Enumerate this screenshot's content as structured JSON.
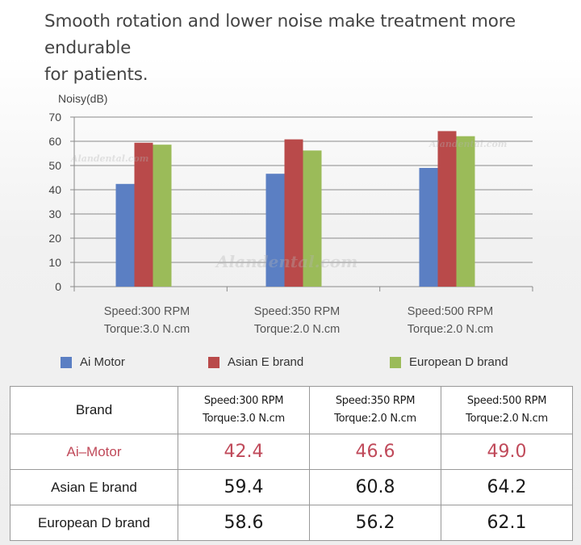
{
  "heading": {
    "line1": "Smooth rotation and lower noise make treatment more endurable",
    "line2": "for patients."
  },
  "watermark": "Alandental.com",
  "chart_data": {
    "type": "bar",
    "ylabel": "Noisy(dB)",
    "ylim": [
      0,
      70
    ],
    "yticks": [
      0,
      10,
      20,
      30,
      40,
      50,
      60,
      70
    ],
    "grid": true,
    "legend_position": "bottom",
    "categories": [
      [
        "Speed:300 RPM",
        "Torque:3.0 N.cm"
      ],
      [
        "Speed:350 RPM",
        "Torque:2.0 N.cm"
      ],
      [
        "Speed:500 RPM",
        "Torque:2.0 N.cm"
      ]
    ],
    "series": [
      {
        "name": "Ai Motor",
        "color": "#5b7fc3",
        "values": [
          42.4,
          46.6,
          49.0
        ]
      },
      {
        "name": "Asian E brand",
        "color": "#b94a4a",
        "values": [
          59.4,
          60.8,
          64.2
        ]
      },
      {
        "name": "European D brand",
        "color": "#9bbb59",
        "values": [
          58.6,
          56.2,
          62.1
        ]
      }
    ]
  },
  "table": {
    "header_label": "Brand",
    "columns": [
      [
        "Speed:300 RPM",
        "Torque:3.0 N.cm"
      ],
      [
        "Speed:350 RPM",
        "Torque:2.0 N.cm"
      ],
      [
        "Speed:500 RPM",
        "Torque:2.0 N.cm"
      ]
    ],
    "rows": [
      {
        "label": "Ai–Motor",
        "values": [
          "42.4",
          "46.6",
          "49.0"
        ]
      },
      {
        "label": "Asian E brand",
        "values": [
          "59.4",
          "60.8",
          "64.2"
        ]
      },
      {
        "label": "European D brand",
        "values": [
          "58.6",
          "56.2",
          "62.1"
        ]
      }
    ],
    "highlight_color": "#c04a5a"
  }
}
